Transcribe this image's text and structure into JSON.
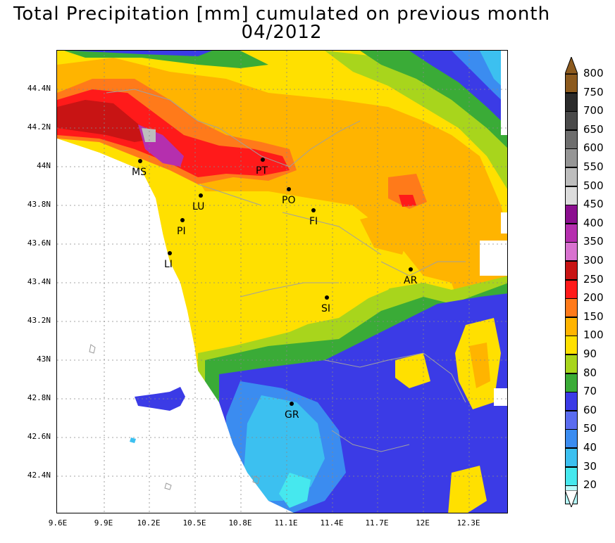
{
  "title": {
    "line1": "Total Precipitation [mm] cumulated on previous month",
    "line2": "04/2012"
  },
  "map": {
    "y_axis_labels": [
      "44.4N",
      "44.2N",
      "44N",
      "43.8N",
      "43.6N",
      "43.4N",
      "43.2N",
      "43N",
      "42.8N",
      "42.6N",
      "42.4N"
    ],
    "x_axis_labels": [
      "9.6E",
      "9.9E",
      "10.2E",
      "10.5E",
      "10.8E",
      "11.1E",
      "11.4E",
      "11.7E",
      "12E",
      "12.3E"
    ],
    "cities": [
      {
        "code": "MS"
      },
      {
        "code": "PT"
      },
      {
        "code": "PO"
      },
      {
        "code": "LU"
      },
      {
        "code": "FI"
      },
      {
        "code": "PI"
      },
      {
        "code": "LI"
      },
      {
        "code": "AR"
      },
      {
        "code": "SI"
      },
      {
        "code": "GR"
      }
    ]
  },
  "colorbar": {
    "levels": [
      {
        "label": "800",
        "color": "#8c5a1e"
      },
      {
        "label": "750",
        "color": "#2b2b2b"
      },
      {
        "label": "700",
        "color": "#4a4a4a"
      },
      {
        "label": "650",
        "color": "#6e6e6e"
      },
      {
        "label": "600",
        "color": "#959595"
      },
      {
        "label": "550",
        "color": "#bdbdbd"
      },
      {
        "label": "500",
        "color": "#dcdcdc"
      },
      {
        "label": "450",
        "color": "#8b0f8f"
      },
      {
        "label": "400",
        "color": "#b52fae"
      },
      {
        "label": "350",
        "color": "#d872cf"
      },
      {
        "label": "300",
        "color": "#c81414"
      },
      {
        "label": "250",
        "color": "#ff1a1a"
      },
      {
        "label": "200",
        "color": "#ff7a1a"
      },
      {
        "label": "150",
        "color": "#ffb400"
      },
      {
        "label": "100",
        "color": "#ffe000"
      },
      {
        "label": "90",
        "color": "#a8d51c"
      },
      {
        "label": "80",
        "color": "#3aab37"
      },
      {
        "label": "70",
        "color": "#3b3be6"
      },
      {
        "label": "60",
        "color": "#5a6cf0"
      },
      {
        "label": "50",
        "color": "#3b8cf0"
      },
      {
        "label": "40",
        "color": "#3cc0f0"
      },
      {
        "label": "30",
        "color": "#46e8ee"
      },
      {
        "label": "20",
        "color": "#b6fbfb"
      }
    ],
    "top_arrow_color": "#8c5a1e",
    "bottom_arrow_color": "#ffffff"
  }
}
